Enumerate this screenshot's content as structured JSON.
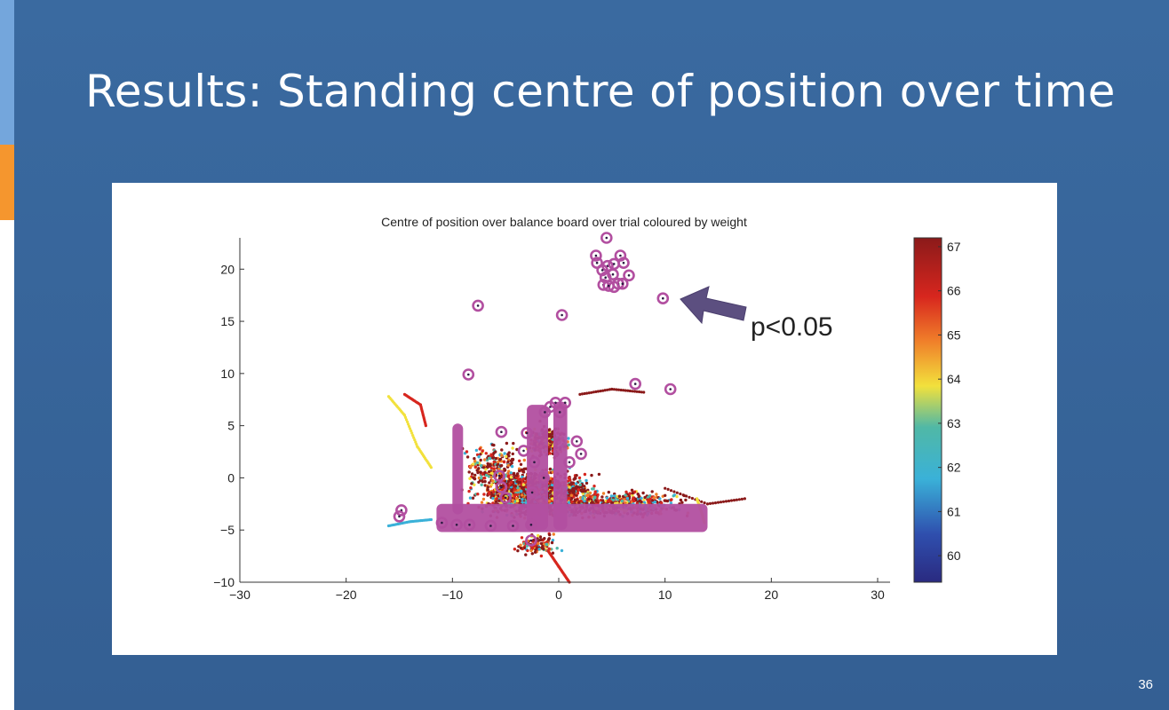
{
  "slide": {
    "title": "Results: Standing centre of position over time",
    "page_number": "36",
    "colors": {
      "background": "#345f93",
      "accent_top": "#74a6dc",
      "accent_bottom": "#f5962e"
    }
  },
  "annotation": {
    "text": "p<0.05",
    "arrow_color": "#5c4f80",
    "arrow_icon": "left-arrow-icon"
  },
  "chart_data": {
    "type": "scatter",
    "title": "Centre of position over balance board over trial coloured by weight",
    "xlabel": "",
    "ylabel": "",
    "xlim": [
      -30,
      30
    ],
    "ylim": [
      -10,
      23
    ],
    "x_ticks": [
      -30,
      -20,
      -10,
      0,
      10,
      20,
      30
    ],
    "x_tick_labels": [
      "−30",
      "−20",
      "−10",
      "0",
      "10",
      "20",
      "30"
    ],
    "y_ticks": [
      -10,
      -5,
      0,
      5,
      10,
      15,
      20
    ],
    "y_tick_labels": [
      "−10",
      "−5",
      "0",
      "5",
      "10",
      "15",
      "20"
    ],
    "grid": false,
    "colorbar": {
      "label": "",
      "range": [
        59.4,
        67.2
      ],
      "ticks": [
        60,
        61,
        62,
        63,
        64,
        65,
        66,
        67
      ],
      "tick_labels": [
        "60",
        "61",
        "62",
        "63",
        "64",
        "65",
        "66",
        "67"
      ],
      "colormap": "jet"
    },
    "highlighted_points_marker": "open circle with center dot",
    "highlighted_points_color": "#b24fa0",
    "highlighted_points": [
      [
        4.5,
        23.0
      ],
      [
        3.5,
        21.3
      ],
      [
        5.8,
        21.3
      ],
      [
        3.6,
        20.6
      ],
      [
        4.6,
        20.3
      ],
      [
        5.2,
        20.5
      ],
      [
        6.1,
        20.6
      ],
      [
        4.1,
        19.9
      ],
      [
        4.4,
        19.2
      ],
      [
        5.1,
        19.5
      ],
      [
        6.6,
        19.4
      ],
      [
        4.2,
        18.5
      ],
      [
        5.2,
        18.3
      ],
      [
        5.6,
        18.6
      ],
      [
        6.0,
        18.6
      ],
      [
        4.7,
        18.4
      ],
      [
        9.8,
        17.2
      ],
      [
        0.3,
        15.6
      ],
      [
        -7.6,
        16.5
      ],
      [
        -8.5,
        9.9
      ],
      [
        7.2,
        9.0
      ],
      [
        10.5,
        8.5
      ],
      [
        -0.3,
        7.2
      ],
      [
        0.6,
        7.2
      ],
      [
        -0.8,
        6.8
      ],
      [
        -1.3,
        6.3
      ],
      [
        0.1,
        6.3
      ],
      [
        -5.4,
        4.4
      ],
      [
        -3.0,
        4.3
      ],
      [
        1.7,
        3.5
      ],
      [
        -3.3,
        2.6
      ],
      [
        2.1,
        2.3
      ],
      [
        -2.3,
        1.5
      ],
      [
        1.0,
        1.5
      ],
      [
        -5.6,
        0.2
      ],
      [
        -1.4,
        0.0
      ],
      [
        -5.4,
        -0.9
      ],
      [
        -2.5,
        -1.4
      ],
      [
        -5.0,
        -1.9
      ],
      [
        -14.8,
        -3.1
      ],
      [
        -15.0,
        -3.7
      ],
      [
        -11.0,
        -4.3
      ],
      [
        -9.6,
        -4.5
      ],
      [
        -8.4,
        -4.5
      ],
      [
        -6.4,
        -4.6
      ],
      [
        -4.3,
        -4.6
      ],
      [
        -2.6,
        -4.5
      ],
      [
        -2.6,
        -6.0
      ]
    ],
    "highlighted_clusters": [
      {
        "x": [
          -10.0,
          -9.0
        ],
        "y": [
          -3.5,
          5.2
        ]
      },
      {
        "x": [
          -3.0,
          -1.0
        ],
        "y": [
          -5.0,
          7.0
        ]
      },
      {
        "x": [
          -0.5,
          0.8
        ],
        "y": [
          -5.0,
          7.3
        ]
      },
      {
        "x": [
          -11.5,
          14.0
        ],
        "y": [
          -5.2,
          -2.5
        ]
      }
    ],
    "trajectory_summary": {
      "x_range": [
        -16.5,
        17.5
      ],
      "y_range": [
        -10,
        8.2
      ],
      "dominant_colors": [
        "#8b1a1a",
        "#d7261e",
        "#f07f2a",
        "#f2e13c",
        "#3ab1d8",
        "#50b8a6"
      ]
    }
  }
}
